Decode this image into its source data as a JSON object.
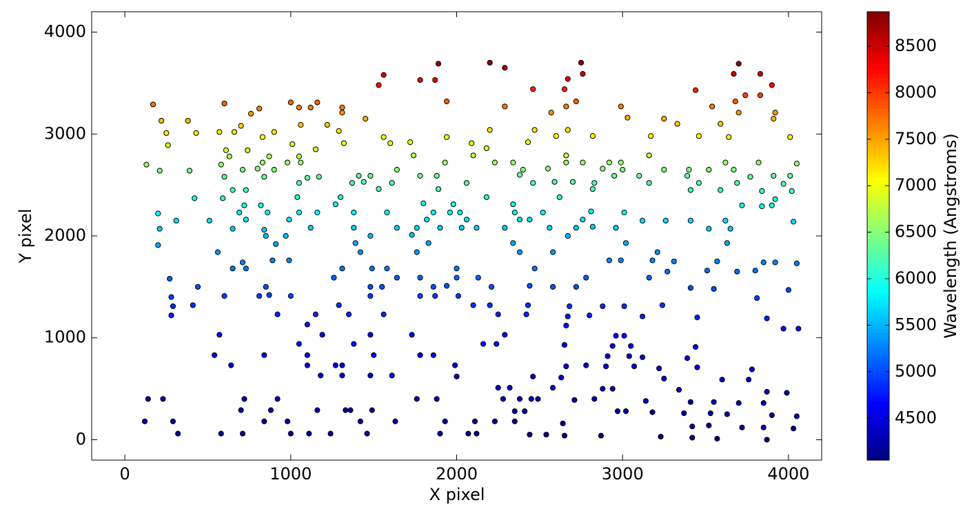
{
  "chart_data": {
    "type": "scatter",
    "xlabel": "X pixel",
    "ylabel": "Y pixel",
    "colorbar_label": "Wavelength (Angstroms)",
    "colormap": "jet",
    "marker_edge_color": "#000000",
    "xlim": [
      -200,
      4200
    ],
    "ylim": [
      -200,
      4200
    ],
    "xticks": [
      0,
      1000,
      2000,
      3000,
      4000
    ],
    "yticks": [
      0,
      1000,
      2000,
      3000,
      4000
    ],
    "clim": [
      4050,
      8870
    ],
    "cticks": [
      4500,
      5000,
      5500,
      6000,
      6500,
      7000,
      7500,
      8000,
      8500
    ],
    "x": [
      170,
      220,
      250,
      260,
      380,
      430,
      600,
      570,
      660,
      700,
      760,
      810,
      830,
      900,
      1000,
      1050,
      1060,
      1120,
      1160,
      1220,
      1290,
      1310,
      1310,
      1320,
      1450,
      1530,
      1560,
      1560,
      1600,
      1780,
      1870,
      1890,
      1940,
      1940,
      2090,
      2180,
      2200,
      2200,
      2290,
      2290,
      2460,
      2470,
      2570,
      2600,
      2650,
      2660,
      2670,
      2670,
      2720,
      2750,
      2760,
      2820,
      2990,
      3030,
      3170,
      3250,
      3330,
      3440,
      3460,
      3540,
      3590,
      3640,
      3670,
      3680,
      3700,
      3700,
      3740,
      3830,
      3830,
      3900,
      3910,
      3920,
      4010,
      130,
      210,
      390,
      420,
      580,
      600,
      610,
      630,
      650,
      710,
      730,
      730,
      740,
      800,
      830,
      840,
      870,
      900,
      980,
      1010,
      1050,
      1050,
      1060,
      1100,
      1150,
      1170,
      1270,
      1300,
      1370,
      1410,
      1440,
      1480,
      1530,
      1610,
      1640,
      1720,
      1740,
      1780,
      1880,
      1890,
      1930,
      2060,
      2100,
      2180,
      2230,
      2340,
      2380,
      2400,
      2430,
      2460,
      2550,
      2590,
      2620,
      2660,
      2660,
      2700,
      2760,
      2820,
      2830,
      2880,
      2920,
      2950,
      2990,
      3000,
      3100,
      3160,
      3160,
      3250,
      3390,
      3400,
      3410,
      3460,
      3520,
      3590,
      3620,
      3670,
      3690,
      3770,
      3820,
      3840,
      3910,
      3920,
      3970,
      4010,
      4020,
      4050,
      200,
      210,
      310,
      510,
      590,
      650,
      690,
      720,
      820,
      840,
      850,
      860,
      990,
      1040,
      1050,
      1120,
      1160,
      1380,
      1380,
      1480,
      1580,
      1640,
      1730,
      1760,
      1800,
      1820,
      1860,
      1900,
      1960,
      1980,
      2020,
      2030,
      2060,
      2120,
      2290,
      2340,
      2350,
      2380,
      2440,
      2520,
      2560,
      2670,
      2720,
      2760,
      2810,
      2820,
      2960,
      3010,
      3120,
      3260,
      3410,
      3520,
      3620,
      3650,
      3720,
      3840,
      3900,
      4030,
      200,
      270,
      290,
      280,
      280,
      440,
      410,
      560,
      600,
      650,
      710,
      730,
      810,
      850,
      870,
      890,
      910,
      920,
      970,
      990,
      1000,
      1100,
      1150,
      1260,
      1290,
      1310,
      1350,
      1390,
      1420,
      1480,
      1490,
      1480,
      1550,
      1560,
      1580,
      1640,
      1760,
      1780,
      1780,
      1830,
      1860,
      1870,
      1940,
      2000,
      2000,
      2010,
      2100,
      2130,
      2200,
      2210,
      2250,
      2340,
      2380,
      2420,
      2430,
      2440,
      2470,
      2580,
      2580,
      2670,
      2680,
      2720,
      2780,
      2800,
      2880,
      2920,
      2990,
      3010,
      3020,
      3120,
      3160,
      3180,
      3210,
      3240,
      3270,
      3310,
      3410,
      3450,
      3510,
      3550,
      3570,
      3630,
      3690,
      3800,
      3810,
      3850,
      3870,
      3920,
      3970,
      4000,
      4050,
      4060,
      120,
      140,
      230,
      290,
      320,
      570,
      540,
      580,
      640,
      700,
      710,
      720,
      840,
      840,
      880,
      920,
      980,
      1000,
      1050,
      1100,
      1100,
      1110,
      1160,
      1180,
      1190,
      1240,
      1270,
      1310,
      1310,
      1330,
      1360,
      1380,
      1420,
      1460,
      1480,
      1480,
      1490,
      1500,
      1610,
      1630,
      1730,
      1760,
      1780,
      1860,
      1880,
      1900,
      1930,
      1990,
      2000,
      2070,
      2110,
      2120,
      2160,
      2230,
      2240,
      2250,
      2280,
      2290,
      2320,
      2350,
      2350,
      2380,
      2410,
      2440,
      2450,
      2460,
      2490,
      2540,
      2580,
      2630,
      2640,
      2650,
      2660,
      2660,
      2650,
      2710,
      2780,
      2830,
      2870,
      2880,
      2900,
      2910,
      2940,
      2940,
      2960,
      2970,
      3010,
      3020,
      3040,
      3050,
      3070,
      3120,
      3140,
      3180,
      3220,
      3230,
      3250,
      3340,
      3370,
      3390,
      3410,
      3420,
      3420,
      3440,
      3450,
      3520,
      3530,
      3550,
      3570,
      3600,
      3630,
      3720,
      3700,
      3760,
      3780,
      3850,
      3850,
      3870,
      3870,
      3900,
      3990,
      4030,
      4050
    ],
    "y": [
      3290,
      3130,
      3010,
      2890,
      3130,
      3010,
      3300,
      3020,
      3020,
      3080,
      3200,
      3250,
      2970,
      3020,
      3310,
      3260,
      3090,
      3260,
      3310,
      3090,
      3030,
      3260,
      3210,
      2910,
      3150,
      3480,
      3580,
      2970,
      2910,
      3530,
      3530,
      3690,
      3320,
      2970,
      2910,
      2860,
      3700,
      3040,
      3650,
      3270,
      3440,
      3040,
      3210,
      2980,
      3440,
      3270,
      3540,
      3040,
      3320,
      3700,
      3590,
      2980,
      3270,
      3160,
      2980,
      3150,
      3100,
      3430,
      2980,
      3270,
      3100,
      2970,
      3590,
      3320,
      3690,
      3210,
      3380,
      3590,
      3380,
      3480,
      3150,
      3210,
      2970,
      2700,
      2640,
      2640,
      2370,
      2700,
      2580,
      2840,
      2780,
      2450,
      2650,
      2160,
      2450,
      2840,
      2660,
      2720,
      2580,
      2780,
      2650,
      2720,
      2900,
      2780,
      2520,
      2720,
      2570,
      2850,
      2580,
      2310,
      2380,
      2520,
      2590,
      2530,
      2590,
      2460,
      2520,
      2650,
      2920,
      2790,
      2590,
      2590,
      2460,
      2720,
      2520,
      2790,
      2380,
      2720,
      2720,
      2600,
      2650,
      2920,
      2520,
      2660,
      2530,
      2380,
      2720,
      2790,
      2530,
      2720,
      2460,
      2520,
      2660,
      2720,
      2590,
      2720,
      2650,
      2590,
      2790,
      2520,
      2650,
      2590,
      2650,
      2450,
      2520,
      2650,
      2450,
      2720,
      2650,
      2520,
      2580,
      2720,
      2440,
      2590,
      2360,
      2510,
      2590,
      2440,
      2710,
      2220,
      2070,
      2150,
      2150,
      2370,
      2070,
      2230,
      2300,
      2300,
      2060,
      2000,
      2230,
      2160,
      2380,
      2230,
      2080,
      2230,
      2080,
      2230,
      2000,
      2230,
      2080,
      2010,
      2080,
      2320,
      2160,
      2230,
      2080,
      2230,
      2310,
      2230,
      2080,
      2160,
      2080,
      2080,
      2310,
      2230,
      2160,
      2160,
      2230,
      2080,
      2000,
      2080,
      2160,
      2240,
      2090,
      2080,
      2230,
      2150,
      2150,
      2150,
      2070,
      2150,
      2070,
      2300,
      2290,
      2300,
      2140,
      1910,
      1580,
      1310,
      1220,
      1400,
      1500,
      1320,
      1840,
      1410,
      1680,
      1740,
      1680,
      1410,
      1500,
      1420,
      1760,
      1920,
      1230,
      2000,
      1760,
      1410,
      1130,
      1230,
      1590,
      1320,
      1680,
      1230,
      1930,
      1840,
      1410,
      1680,
      1500,
      1500,
      1230,
      1680,
      1590,
      1840,
      1590,
      1410,
      1930,
      1500,
      1410,
      1510,
      1590,
      1680,
      1410,
      1320,
      1590,
      1320,
      1500,
      1230,
      1930,
      1840,
      1230,
      1320,
      1510,
      1680,
      1500,
      1840,
      1210,
      1310,
      1500,
      1590,
      1220,
      1310,
      1760,
      1760,
      1310,
      1930,
      1210,
      1590,
      1760,
      1840,
      1320,
      1650,
      1750,
      1490,
      1200,
      1660,
      1480,
      1750,
      1930,
      1650,
      1660,
      1390,
      1740,
      1190,
      1740,
      1090,
      1470,
      1730,
      1090,
      180,
      400,
      400,
      180,
      60,
      1030,
      830,
      60,
      730,
      290,
      60,
      400,
      830,
      180,
      290,
      400,
      180,
      60,
      940,
      830,
      730,
      60,
      290,
      630,
      1030,
      60,
      730,
      730,
      630,
      290,
      290,
      940,
      180,
      60,
      1030,
      630,
      290,
      830,
      630,
      180,
      1030,
      400,
      830,
      830,
      400,
      60,
      180,
      730,
      620,
      60,
      180,
      60,
      940,
      180,
      940,
      510,
      400,
      1030,
      510,
      180,
      280,
      400,
      280,
      50,
      400,
      620,
      400,
      50,
      510,
      610,
      160,
      930,
      720,
      1120,
      40,
      390,
      730,
      400,
      40,
      500,
      720,
      820,
      920,
      500,
      1020,
      280,
      1020,
      280,
      820,
      920,
      720,
      810,
      380,
      270,
      700,
      30,
      600,
      490,
      260,
      800,
      370,
      130,
      20,
      910,
      710,
      140,
      260,
      370,
      10,
      590,
      250,
      120,
      360,
      590,
      690,
      120,
      360,
      470,
      0,
      240,
      460,
      110,
      230
    ],
    "c": [
      7750,
      7390,
      7140,
      6900,
      7390,
      7140,
      7770,
      7160,
      7160,
      7290,
      7550,
      7660,
      7060,
      7160,
      7800,
      7680,
      7310,
      7680,
      7800,
      7310,
      7180,
      7680,
      7570,
      6940,
      7430,
      8210,
      8470,
      7060,
      6940,
      8340,
      8340,
      8770,
      7820,
      7060,
      6940,
      6850,
      8800,
      7200,
      8660,
      7700,
      8110,
      7200,
      7570,
      7080,
      8110,
      7700,
      8370,
      7200,
      7820,
      8800,
      8500,
      7080,
      7700,
      7460,
      7080,
      7430,
      7330,
      8090,
      7080,
      7700,
      7330,
      7060,
      8500,
      7820,
      8770,
      7570,
      7960,
      8500,
      7960,
      8210,
      7430,
      7570,
      7060,
      6560,
      6460,
      6460,
      6030,
      6560,
      6360,
      6810,
      6700,
      6150,
      6470,
      5750,
      6150,
      6810,
      6490,
      6590,
      6360,
      6700,
      6470,
      6590,
      6920,
      6700,
      6260,
      6590,
      6340,
      6830,
      6360,
      5950,
      6050,
      6260,
      6370,
      6280,
      6370,
      6170,
      6260,
      6470,
      6960,
      6720,
      6370,
      6370,
      6170,
      6590,
      6260,
      6720,
      6050,
      6590,
      6590,
      6390,
      6470,
      6960,
      6260,
      6490,
      6280,
      6050,
      6590,
      6720,
      6280,
      6590,
      6170,
      6260,
      6490,
      6590,
      6370,
      6590,
      6470,
      6370,
      6720,
      6260,
      6470,
      6370,
      6470,
      6150,
      6260,
      6470,
      6150,
      6590,
      6470,
      6260,
      6360,
      6590,
      6140,
      6370,
      6020,
      6250,
      6370,
      6140,
      6580,
      5830,
      5630,
      5730,
      5730,
      6030,
      5630,
      5840,
      5940,
      5940,
      5620,
      5550,
      5840,
      5750,
      6050,
      5840,
      5650,
      5840,
      5650,
      5840,
      5550,
      5840,
      5650,
      5560,
      5650,
      5960,
      5750,
      5840,
      5650,
      5840,
      5950,
      5840,
      5650,
      5750,
      5650,
      5650,
      5950,
      5840,
      5750,
      5750,
      5840,
      5650,
      5550,
      5650,
      5750,
      5850,
      5660,
      5650,
      5840,
      5730,
      5730,
      5730,
      5630,
      5730,
      5630,
      5940,
      5920,
      5940,
      5720,
      5450,
      5110,
      4880,
      4810,
      4950,
      5040,
      4890,
      5370,
      4960,
      5210,
      5270,
      5210,
      4960,
      5040,
      4970,
      5290,
      5460,
      4820,
      5550,
      5290,
      4960,
      4750,
      4820,
      5120,
      4890,
      5210,
      4820,
      5470,
      5370,
      4960,
      5210,
      5040,
      5040,
      4820,
      5210,
      5120,
      5370,
      5120,
      4960,
      5470,
      5040,
      4960,
      5050,
      5120,
      5210,
      4960,
      4890,
      5120,
      4890,
      5040,
      4820,
      5470,
      5370,
      4820,
      4890,
      5050,
      5210,
      5040,
      5370,
      4810,
      4880,
      5040,
      5120,
      4810,
      4880,
      5290,
      5290,
      4880,
      5470,
      4810,
      5120,
      5290,
      5370,
      4890,
      5180,
      5280,
      5030,
      4800,
      5190,
      5020,
      5280,
      5470,
      5180,
      5190,
      4950,
      5270,
      4790,
      5270,
      4720,
      5010,
      5260,
      4720,
      4190,
      4300,
      4300,
      4190,
      4130,
      4680,
      4550,
      4130,
      4480,
      4250,
      4130,
      4300,
      4550,
      4190,
      4250,
      4300,
      4190,
      4130,
      4610,
      4550,
      4480,
      4130,
      4250,
      4430,
      4680,
      4130,
      4480,
      4480,
      4430,
      4250,
      4250,
      4610,
      4190,
      4130,
      4680,
      4430,
      4250,
      4550,
      4430,
      4190,
      4680,
      4300,
      4550,
      4550,
      4300,
      4130,
      4190,
      4480,
      4420,
      4130,
      4190,
      4130,
      4610,
      4190,
      4610,
      4360,
      4300,
      4680,
      4360,
      4190,
      4240,
      4300,
      4240,
      4130,
      4300,
      4420,
      4300,
      4130,
      4360,
      4410,
      4180,
      4600,
      4470,
      4740,
      4120,
      4300,
      4480,
      4300,
      4120,
      4360,
      4470,
      4540,
      4600,
      4360,
      4670,
      4240,
      4670,
      4240,
      4540,
      4600,
      4470,
      4530,
      4290,
      4240,
      4470,
      4120,
      4410,
      4350,
      4230,
      4530,
      4290,
      4170,
      4110,
      4590,
      4470,
      4170,
      4230,
      4290,
      4110,
      4400,
      4230,
      4160,
      4280,
      4400,
      4460,
      4160,
      4280,
      4340,
      4100,
      4220,
      4330,
      4160,
      4220
    ]
  }
}
